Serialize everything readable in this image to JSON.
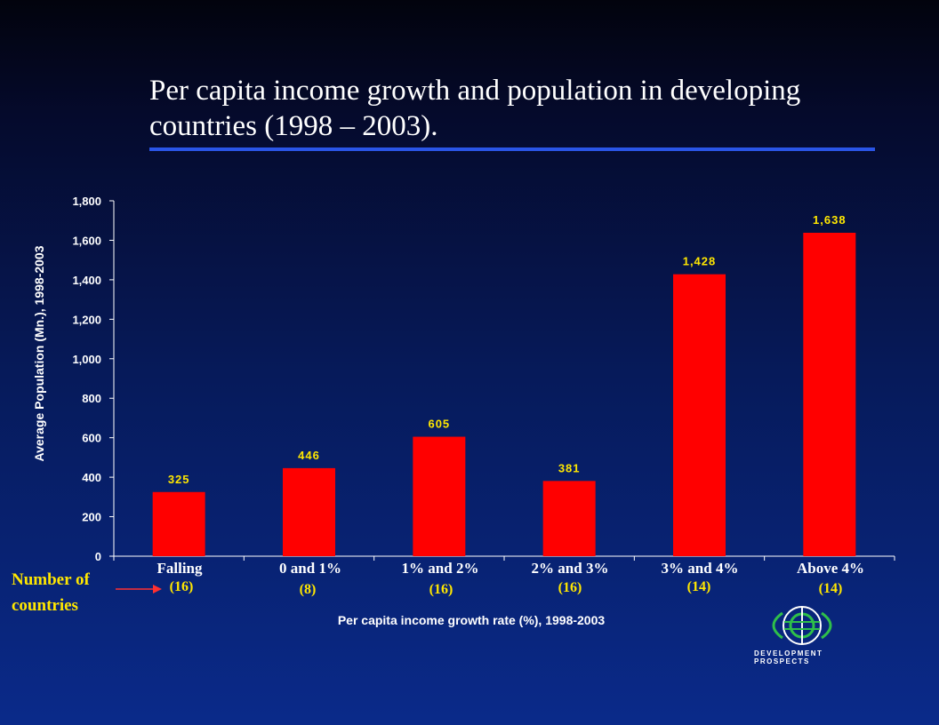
{
  "title": "Per capita income growth and population in developing countries (1998 – 2003).",
  "colors": {
    "bar": "#ff0000",
    "data_label": "#ffe700",
    "text": "#ffffff",
    "accent_rule": "#2a55e6"
  },
  "side_note": {
    "label": "Number of countries"
  },
  "counts": [
    "(16)",
    "(8)",
    "(16)",
    "(16)",
    "(14)",
    "(14)"
  ],
  "logo": {
    "text": "DEVELOPMENT PROSPECTS",
    "icon": "globe-logo-icon"
  },
  "chart_data": {
    "type": "bar",
    "categories": [
      "Falling",
      "0 and 1%",
      "1% and 2%",
      "2% and 3%",
      "3% and 4%",
      "Above 4%"
    ],
    "values": [
      325,
      446,
      605,
      381,
      1428,
      1638
    ],
    "data_labels": [
      "325",
      "446",
      "605",
      "381",
      "1,428",
      "1,638"
    ],
    "ylabel": "Average Population (Mn.), 1998-2003",
    "xlabel": "Per capita income growth rate (%), 1998-2003",
    "ylim": [
      0,
      1800
    ],
    "yticks": [
      0,
      200,
      400,
      600,
      800,
      1000,
      1200,
      1400,
      1600,
      1800
    ],
    "ytick_labels": [
      "0",
      "200",
      "400",
      "600",
      "800",
      "1,000",
      "1,200",
      "1,400",
      "1,600",
      "1,800"
    ],
    "grid": false,
    "legend": "none"
  }
}
